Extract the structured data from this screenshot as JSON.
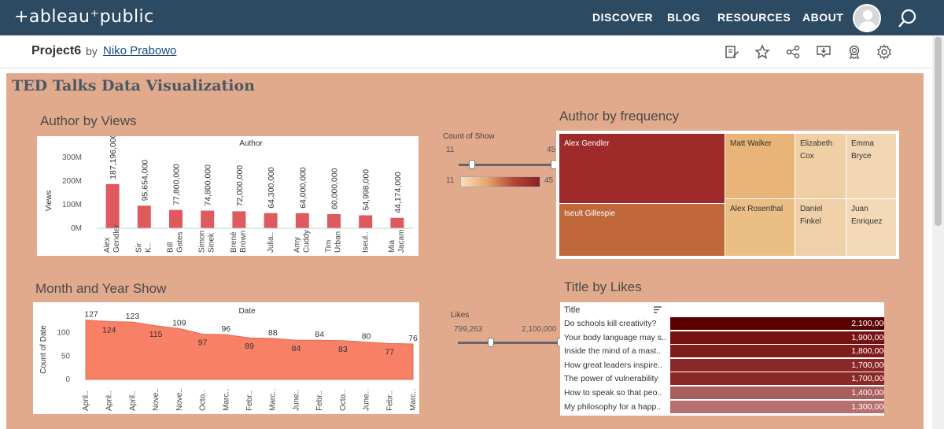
{
  "app": {
    "logo": "+ableau⁺public",
    "nav": [
      "DISCOVER",
      "BLOG",
      "RESOURCES",
      "ABOUT"
    ]
  },
  "project": {
    "name": "Project6",
    "by": "by",
    "author": "Niko Prabowo"
  },
  "dashboard": {
    "title": "TED Talks Data Visualization",
    "sections": {
      "author_views": "Author by Views",
      "author_freq": "Author by frequency",
      "month_year": "Month and Year Show",
      "title_likes": "Title by Likes"
    }
  },
  "colors": {
    "bar": "#de5a5e",
    "area": "#f88066",
    "topbar": "#2d4a63",
    "dashboard_bg": "#e2aa8c"
  },
  "count_filter": {
    "label": "Count of Show",
    "min": "11",
    "max": "45"
  },
  "likes_filter": {
    "label": "Likes",
    "min": "799,263",
    "max": "2,100,000"
  },
  "treemap": [
    {
      "name": "Alex Gendler",
      "color": "#9e2a2a",
      "text": "#ffffff"
    },
    {
      "name": "Iseult Gillespie",
      "color": "#c0683a",
      "text": "#ffffff"
    },
    {
      "name": "Matt Walker",
      "color": "#e8b478",
      "text": "#333333"
    },
    {
      "name": "Alex Rosenthal",
      "color": "#ebbe85",
      "text": "#333333"
    },
    {
      "name": "Elizabeth Cox",
      "color": "#f0cfa4",
      "text": "#333333"
    },
    {
      "name": "Emma Bryce",
      "color": "#f2d5b2",
      "text": "#333333"
    },
    {
      "name": "Daniel Finkel",
      "color": "#f0d0a8",
      "text": "#333333"
    },
    {
      "name": "Juan Enriquez",
      "color": "#f3d9b8",
      "text": "#333333"
    }
  ],
  "title_table": {
    "header": "Title",
    "rows": [
      {
        "title": "Do schools kill creativity?",
        "value": "2,100,000",
        "color": "#5b0000"
      },
      {
        "title": "Your body language may s..",
        "value": "1,900,000",
        "color": "#771212"
      },
      {
        "title": "Inside the mind of a mast..",
        "value": "1,800,000",
        "color": "#7f1c1c"
      },
      {
        "title": "How great leaders inspire..",
        "value": "1,700,000",
        "color": "#8a2828"
      },
      {
        "title": "The power of vulnerability",
        "value": "1,700,000",
        "color": "#8a2828"
      },
      {
        "title": "How to speak so that peo..",
        "value": "1,400,000",
        "color": "#aa5d5d"
      },
      {
        "title": "My philosophy for a happ..",
        "value": "1,300,000",
        "color": "#b86f70"
      }
    ]
  },
  "chart_data": [
    {
      "type": "bar",
      "title": "Author",
      "ylabel": "Views",
      "categories": [
        "Alex Gendler",
        "Sir K..",
        "Bill Gates",
        "Simon Sinek",
        "Brené Brown",
        "Julia..",
        "Amy Cuddy",
        "Tim Urban",
        "Iseul..",
        "Mia Jacam.."
      ],
      "values": [
        187196000,
        95654000,
        77800000,
        74800000,
        72000000,
        64300000,
        64000000,
        60000000,
        54998000,
        44174000
      ],
      "value_labels": [
        "187,196,000",
        "95,654,000",
        "77,800,000",
        "74,800,000",
        "72,000,000",
        "64,300,000",
        "64,000,000",
        "60,000,000",
        "54,998,000",
        "44,174,000"
      ],
      "yticks": [
        "0M",
        "100M",
        "200M",
        "300M"
      ],
      "ylim": [
        0,
        340000000
      ]
    },
    {
      "type": "area",
      "title": "Date",
      "ylabel": "Count of Date",
      "categories": [
        "April..",
        "April..",
        "April..",
        "Nove..",
        "Nove..",
        "Octo..",
        "Marc..",
        "Febr..",
        "Marc..",
        "June..",
        "Febr..",
        "Octo..",
        "June..",
        "Febr..",
        "Marc.."
      ],
      "values": [
        127,
        124,
        123,
        115,
        109,
        97,
        96,
        89,
        88,
        84,
        84,
        83,
        80,
        77,
        76
      ],
      "yticks": [
        "0",
        "50",
        "100"
      ],
      "ylim": [
        0,
        140
      ]
    }
  ]
}
